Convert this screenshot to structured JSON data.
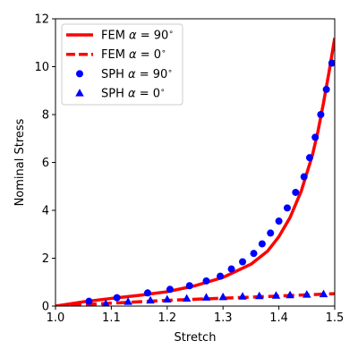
{
  "chart_data": {
    "type": "line",
    "title": "",
    "xlabel": "Stretch",
    "ylabel": "Nominal Stress",
    "xlim": [
      1.0,
      1.5
    ],
    "ylim": [
      0,
      12
    ],
    "xticks": [
      "1.0",
      "1.1",
      "1.2",
      "1.3",
      "1.4",
      "1.5"
    ],
    "xtick_values": [
      1.0,
      1.1,
      1.2,
      1.3,
      1.4,
      1.5
    ],
    "yticks": [
      "0",
      "2",
      "4",
      "6",
      "8",
      "10",
      "12"
    ],
    "ytick_values": [
      0,
      2,
      4,
      6,
      8,
      10,
      12
    ],
    "grid": false,
    "legend_position": "upper-left",
    "series": [
      {
        "name": "FEM $\\alpha = 90^\\circ$",
        "style": "solid-line",
        "color": "#ff0000",
        "x": [
          1.0,
          1.05,
          1.1,
          1.15,
          1.2,
          1.25,
          1.3,
          1.35,
          1.38,
          1.4,
          1.42,
          1.44,
          1.46,
          1.47,
          1.48,
          1.49,
          1.5
        ],
        "y": [
          0.0,
          0.18,
          0.32,
          0.45,
          0.6,
          0.85,
          1.2,
          1.75,
          2.3,
          2.9,
          3.7,
          4.8,
          6.3,
          7.3,
          8.5,
          9.8,
          11.2
        ]
      },
      {
        "name": "FEM $\\alpha = 0^\\circ$",
        "style": "dashed-line",
        "color": "#ff0000",
        "x": [
          1.0,
          1.1,
          1.2,
          1.3,
          1.4,
          1.5
        ],
        "y": [
          0.0,
          0.12,
          0.24,
          0.33,
          0.42,
          0.52
        ]
      },
      {
        "name": "SPH $\\alpha = 90^\\circ$",
        "style": "circle-markers",
        "color": "#0000ff",
        "x": [
          1.06,
          1.11,
          1.165,
          1.205,
          1.24,
          1.27,
          1.295,
          1.315,
          1.335,
          1.355,
          1.37,
          1.385,
          1.4,
          1.415,
          1.43,
          1.445,
          1.455,
          1.465,
          1.475,
          1.485,
          1.495
        ],
        "y": [
          0.2,
          0.35,
          0.55,
          0.7,
          0.85,
          1.05,
          1.25,
          1.55,
          1.85,
          2.2,
          2.6,
          3.05,
          3.55,
          4.1,
          4.75,
          5.4,
          6.2,
          7.05,
          8.0,
          9.05,
          10.15
        ]
      },
      {
        "name": "SPH $\\alpha = 0^\\circ$",
        "style": "triangle-markers",
        "color": "#0000ff",
        "x": [
          1.09,
          1.13,
          1.17,
          1.2,
          1.235,
          1.27,
          1.3,
          1.335,
          1.365,
          1.395,
          1.42,
          1.45,
          1.48
        ],
        "y": [
          0.1,
          0.18,
          0.24,
          0.28,
          0.32,
          0.36,
          0.38,
          0.4,
          0.42,
          0.44,
          0.46,
          0.48,
          0.5
        ]
      }
    ]
  }
}
